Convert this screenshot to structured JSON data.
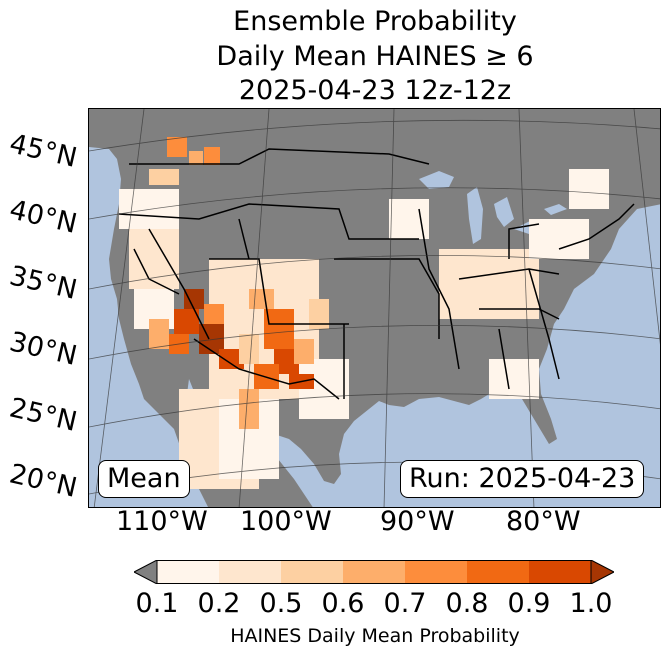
{
  "title": {
    "line1": "Ensemble Probability",
    "line2": "Daily Mean HAINES ≥ 6",
    "line3": "2025-04-23 12z-12z"
  },
  "map": {
    "lat_labels": [
      "45°N",
      "40°N",
      "35°N",
      "30°N",
      "25°N",
      "20°N"
    ],
    "lon_labels": [
      "110°W",
      "100°W",
      "90°W",
      "80°W"
    ],
    "mean_label": "Mean",
    "run_label": "Run: 2025-04-23",
    "ocean_color": "#b0c4de",
    "land_color": "#808080"
  },
  "colorbar": {
    "ticks": [
      "0.1",
      "0.2",
      "0.5",
      "0.6",
      "0.7",
      "0.8",
      "0.9",
      "1.0"
    ],
    "colors": [
      "#fff5eb",
      "#fee6ce",
      "#fdd0a2",
      "#fdae6b",
      "#fd8d3c",
      "#f16913",
      "#d94801",
      "#a63603"
    ],
    "under_color": "#808080",
    "label": "HAINES Daily Mean Probability"
  }
}
